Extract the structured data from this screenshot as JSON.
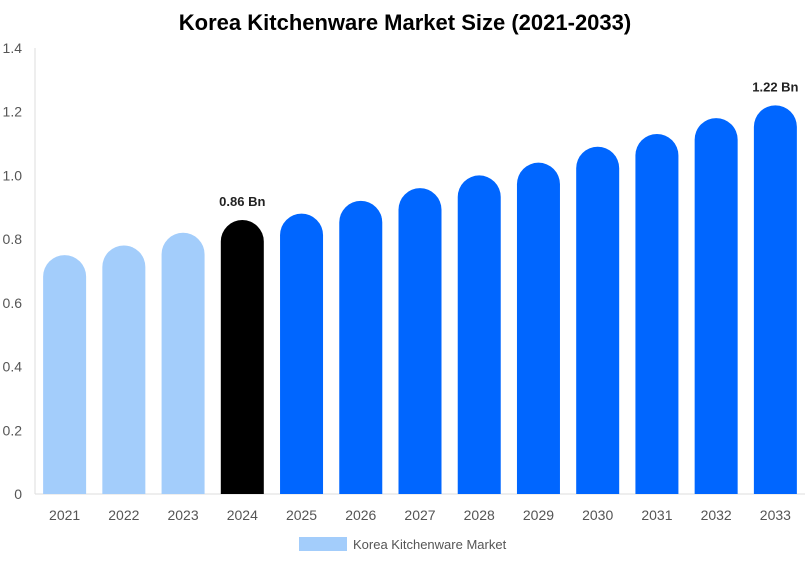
{
  "chart_data": {
    "type": "bar",
    "title": "Korea Kitchenware Market Size (2021-2033)",
    "xlabel": "",
    "ylabel": "",
    "categories": [
      "2021",
      "2022",
      "2023",
      "2024",
      "2025",
      "2026",
      "2027",
      "2028",
      "2029",
      "2030",
      "2031",
      "2032",
      "2033"
    ],
    "series": [
      {
        "name": "Korea Kitchenware Market",
        "values": [
          0.75,
          0.78,
          0.82,
          0.86,
          0.88,
          0.92,
          0.96,
          1.0,
          1.04,
          1.09,
          1.13,
          1.18,
          1.22
        ]
      }
    ],
    "ylim": [
      0,
      1.4
    ],
    "yticks": [
      "0",
      "0.2",
      "0.4",
      "0.6",
      "0.8",
      "1.0",
      "1.2",
      "1.4"
    ],
    "data_labels": [
      {
        "category": "2024",
        "text": "0.86 Bn"
      },
      {
        "category": "2033",
        "text": "1.22 Bn"
      }
    ],
    "colors": {
      "historical": "#a3cdfb",
      "current": "#000000",
      "forecast": "#0066ff",
      "legend_swatch": "#a3cdfb",
      "axis": "#dddddd",
      "tick_text": "#555555"
    },
    "color_groups": {
      "historical": [
        "2021",
        "2022",
        "2023"
      ],
      "current": [
        "2024"
      ],
      "forecast": [
        "2025",
        "2026",
        "2027",
        "2028",
        "2029",
        "2030",
        "2031",
        "2032",
        "2033"
      ]
    },
    "legend_position": "bottom-center",
    "grid": false
  }
}
